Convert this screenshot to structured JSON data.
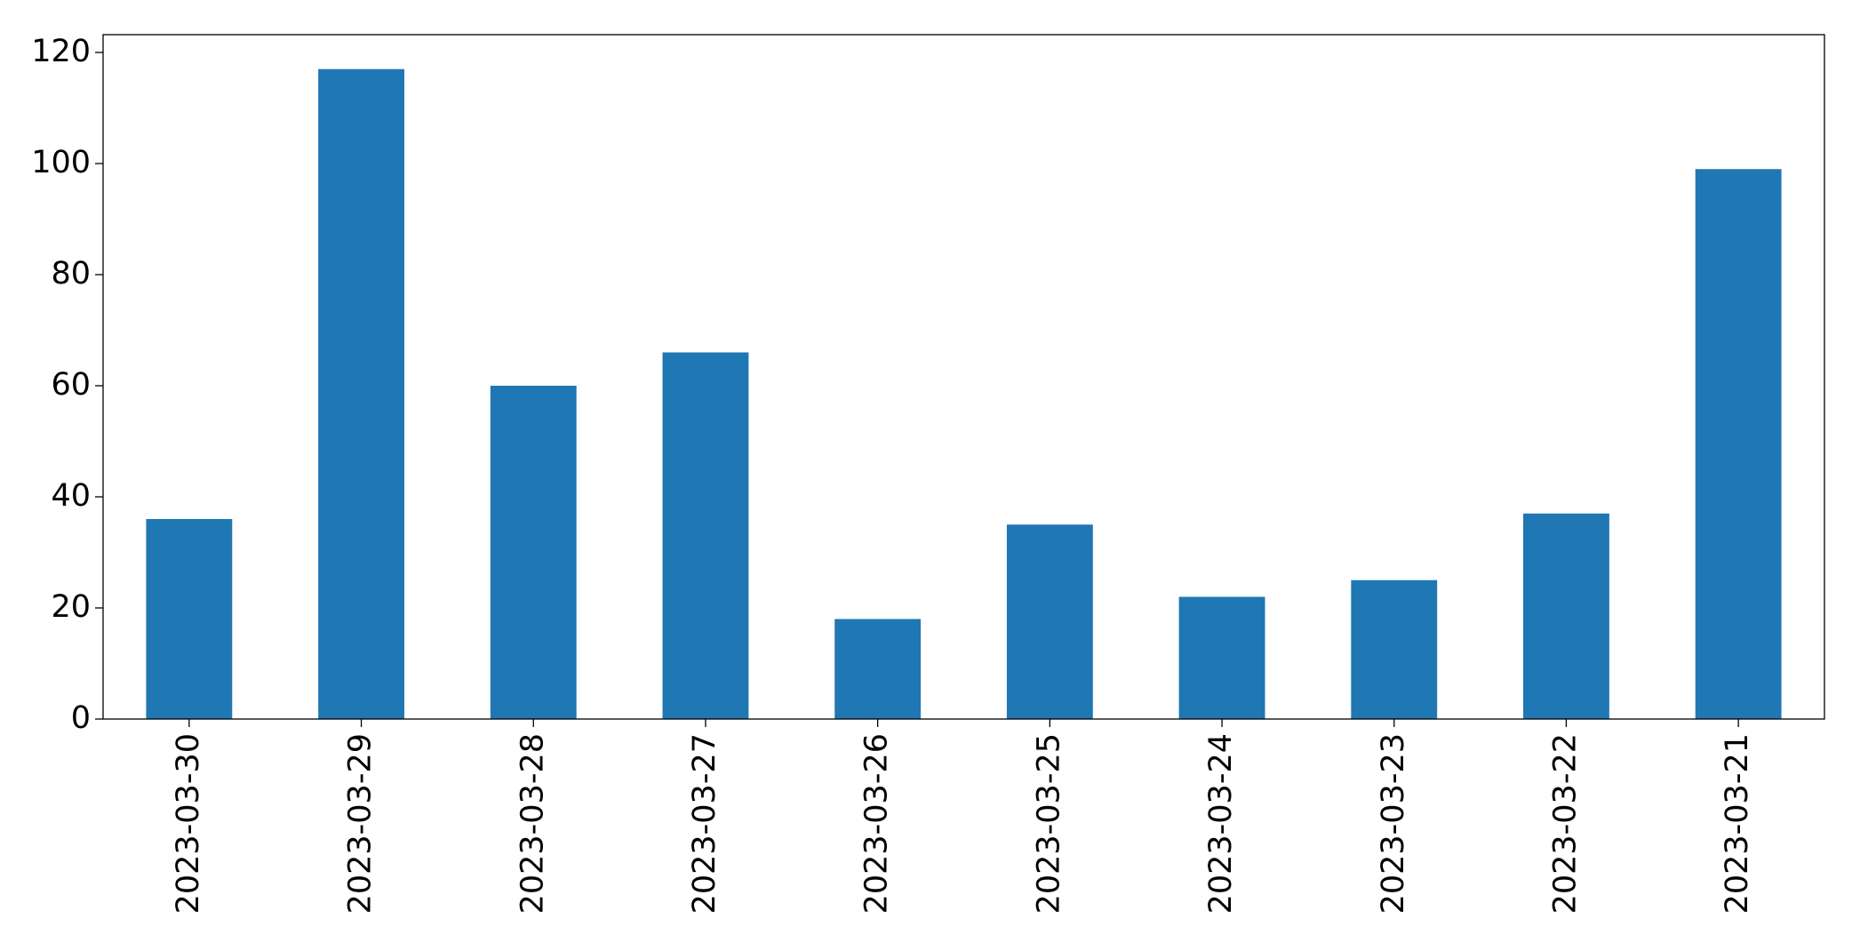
{
  "chart_data": {
    "type": "bar",
    "categories": [
      "2023-03-30",
      "2023-03-29",
      "2023-03-28",
      "2023-03-27",
      "2023-03-26",
      "2023-03-25",
      "2023-03-24",
      "2023-03-23",
      "2023-03-22",
      "2023-03-21"
    ],
    "values": [
      36,
      117,
      60,
      66,
      18,
      35,
      22,
      25,
      37,
      99
    ],
    "color": "#1f77b4",
    "ylim": [
      0,
      123.2
    ],
    "yticks": [
      0,
      20,
      40,
      60,
      80,
      100,
      120
    ],
    "grid": false
  }
}
